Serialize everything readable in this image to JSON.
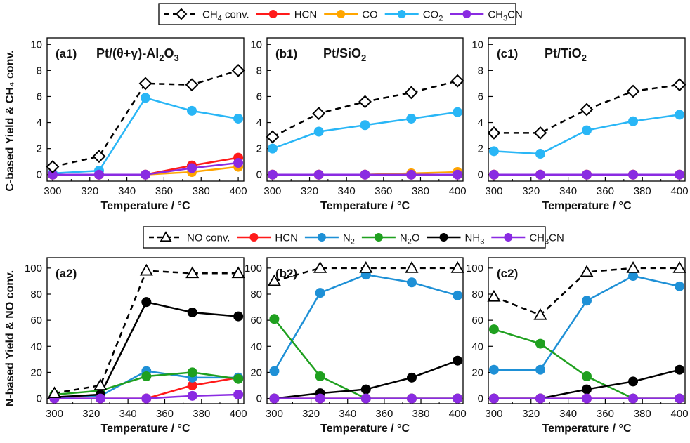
{
  "figure": {
    "top_ylabel": "C-based Yield & CH₄ conv.",
    "bottom_ylabel": "N-based Yield & NO conv."
  },
  "legend_top": [
    {
      "name": "CH₄ conv.",
      "color": "#000000",
      "style": "dashed",
      "marker": "diamond-open"
    },
    {
      "name": "HCN",
      "color": "#ff1a1a",
      "style": "solid",
      "marker": "circle"
    },
    {
      "name": "CO",
      "color": "#ffa500",
      "style": "solid",
      "marker": "circle"
    },
    {
      "name": "CO₂",
      "color": "#29b6f6",
      "style": "solid",
      "marker": "circle"
    },
    {
      "name": "CH₃CN",
      "color": "#8a2be2",
      "style": "solid",
      "marker": "circle"
    }
  ],
  "legend_bottom": [
    {
      "name": "NO conv.",
      "color": "#000000",
      "style": "dashed",
      "marker": "triangle-open"
    },
    {
      "name": "HCN",
      "color": "#ff1a1a",
      "style": "solid",
      "marker": "circle"
    },
    {
      "name": "N₂",
      "color": "#1e90d6",
      "style": "solid",
      "marker": "circle"
    },
    {
      "name": "N₂O",
      "color": "#1fa01f",
      "style": "solid",
      "marker": "circle"
    },
    {
      "name": "NH₃",
      "color": "#000000",
      "style": "solid",
      "marker": "circle"
    },
    {
      "name": "CH₃CN",
      "color": "#8a2be2",
      "style": "solid",
      "marker": "circle"
    }
  ],
  "chart_data": [
    {
      "id": "a1",
      "type": "line",
      "panel_label": "(a1)",
      "title": "Pt/(θ+γ)-Al₂O₃",
      "xlabel": "Temperature / °C",
      "xlim": [
        297,
        403
      ],
      "ylim": [
        -0.5,
        10.5
      ],
      "xticks": [
        300,
        320,
        340,
        360,
        380,
        400
      ],
      "yticks": [
        0,
        2,
        4,
        6,
        8,
        10
      ],
      "x": [
        300,
        325,
        350,
        375,
        400
      ],
      "series": [
        {
          "name": "CH₄ conv.",
          "values": [
            0.6,
            1.4,
            7.0,
            6.9,
            8.0
          ]
        },
        {
          "name": "HCN",
          "values": [
            0,
            0,
            0,
            0.7,
            1.3
          ]
        },
        {
          "name": "CO",
          "values": [
            0,
            0,
            0,
            0.2,
            0.6
          ]
        },
        {
          "name": "CO₂",
          "values": [
            0.1,
            0.3,
            5.9,
            4.9,
            4.3
          ]
        },
        {
          "name": "CH₃CN",
          "values": [
            0,
            0,
            0,
            0.5,
            0.9
          ]
        }
      ]
    },
    {
      "id": "b1",
      "type": "line",
      "panel_label": "(b1)",
      "title": "Pt/SiO₂",
      "xlabel": "Temperature / °C",
      "xlim": [
        297,
        403
      ],
      "ylim": [
        -0.5,
        10.5
      ],
      "xticks": [
        300,
        320,
        340,
        360,
        380,
        400
      ],
      "yticks": [
        0,
        2,
        4,
        6,
        8,
        10
      ],
      "x": [
        300,
        325,
        350,
        375,
        400
      ],
      "series": [
        {
          "name": "CH₄ conv.",
          "values": [
            2.9,
            4.7,
            5.6,
            6.3,
            7.2
          ]
        },
        {
          "name": "HCN",
          "values": [
            0,
            0,
            0,
            0,
            0
          ]
        },
        {
          "name": "CO",
          "values": [
            0,
            0,
            0,
            0.1,
            0.2
          ]
        },
        {
          "name": "CO₂",
          "values": [
            2.0,
            3.3,
            3.8,
            4.3,
            4.8
          ]
        },
        {
          "name": "CH₃CN",
          "values": [
            0,
            0,
            0,
            0,
            0
          ]
        }
      ]
    },
    {
      "id": "c1",
      "type": "line",
      "panel_label": "(c1)",
      "title": "Pt/TiO₂",
      "xlabel": "Temperature / °C",
      "xlim": [
        297,
        403
      ],
      "ylim": [
        -0.5,
        10.5
      ],
      "xticks": [
        300,
        320,
        340,
        360,
        380,
        400
      ],
      "yticks": [
        0,
        2,
        4,
        6,
        8,
        10
      ],
      "x": [
        300,
        325,
        350,
        375,
        400
      ],
      "series": [
        {
          "name": "CH₄ conv.",
          "values": [
            3.2,
            3.2,
            5.0,
            6.4,
            6.9
          ]
        },
        {
          "name": "HCN",
          "values": [
            0,
            0,
            0,
            0,
            0
          ]
        },
        {
          "name": "CO",
          "values": [
            0,
            0,
            0,
            0,
            0
          ]
        },
        {
          "name": "CO₂",
          "values": [
            1.8,
            1.6,
            3.4,
            4.1,
            4.6
          ]
        },
        {
          "name": "CH₃CN",
          "values": [
            0,
            0,
            0,
            0,
            0
          ]
        }
      ]
    },
    {
      "id": "a2",
      "type": "line",
      "panel_label": "(a2)",
      "title": "",
      "xlabel": "Temperature / °C",
      "xlim": [
        296,
        403
      ],
      "ylim": [
        -4,
        108
      ],
      "xticks": [
        300,
        320,
        340,
        360,
        380,
        400
      ],
      "yticks": [
        0,
        20,
        40,
        60,
        80,
        100
      ],
      "x": [
        300,
        325,
        350,
        375,
        400
      ],
      "series": [
        {
          "name": "NO conv.",
          "values": [
            4,
            10,
            98,
            96,
            96
          ]
        },
        {
          "name": "HCN",
          "values": [
            0,
            0,
            0,
            10,
            16
          ]
        },
        {
          "name": "N₂",
          "values": [
            1,
            2,
            21,
            16,
            16
          ]
        },
        {
          "name": "N₂O",
          "values": [
            3,
            6,
            17,
            20,
            15
          ]
        },
        {
          "name": "NH₃",
          "values": [
            1,
            3,
            74,
            66,
            63
          ]
        },
        {
          "name": "CH₃CN",
          "values": [
            0,
            0,
            0,
            2,
            3
          ]
        }
      ]
    },
    {
      "id": "b2",
      "type": "line",
      "panel_label": "(b2)",
      "title": "",
      "xlabel": "Temperature / °C",
      "xlim": [
        296,
        403
      ],
      "ylim": [
        -4,
        108
      ],
      "xticks": [
        300,
        320,
        340,
        360,
        380,
        400
      ],
      "yticks": [
        0,
        20,
        40,
        60,
        80,
        100
      ],
      "x": [
        300,
        325,
        350,
        375,
        400
      ],
      "series": [
        {
          "name": "NO conv.",
          "values": [
            90,
            100,
            100,
            100,
            100
          ]
        },
        {
          "name": "HCN",
          "values": [
            0,
            0,
            0,
            0,
            0
          ]
        },
        {
          "name": "N₂",
          "values": [
            21,
            81,
            95,
            89,
            79
          ]
        },
        {
          "name": "N₂O",
          "values": [
            61,
            17,
            0,
            0,
            0
          ]
        },
        {
          "name": "NH₃",
          "values": [
            0,
            4,
            7,
            16,
            29
          ]
        },
        {
          "name": "CH₃CN",
          "values": [
            0,
            0,
            0,
            0,
            0
          ]
        }
      ]
    },
    {
      "id": "c2",
      "type": "line",
      "panel_label": "(c2)",
      "title": "",
      "xlabel": "Temperature / °C",
      "xlim": [
        297,
        403
      ],
      "ylim": [
        -4,
        108
      ],
      "xticks": [
        300,
        320,
        340,
        360,
        380,
        400
      ],
      "yticks": [
        0,
        20,
        40,
        60,
        80,
        100
      ],
      "x": [
        300,
        325,
        350,
        375,
        400
      ],
      "series": [
        {
          "name": "NO conv.",
          "values": [
            78,
            64,
            97,
            100,
            100
          ]
        },
        {
          "name": "HCN",
          "values": [
            0,
            0,
            0,
            0,
            0
          ]
        },
        {
          "name": "N₂",
          "values": [
            22,
            22,
            75,
            94,
            86
          ]
        },
        {
          "name": "N₂O",
          "values": [
            53,
            42,
            17,
            0,
            0
          ]
        },
        {
          "name": "NH₃",
          "values": [
            0,
            0,
            7,
            13,
            22
          ]
        },
        {
          "name": "CH₃CN",
          "values": [
            0,
            0,
            0,
            0,
            0
          ]
        }
      ]
    }
  ]
}
